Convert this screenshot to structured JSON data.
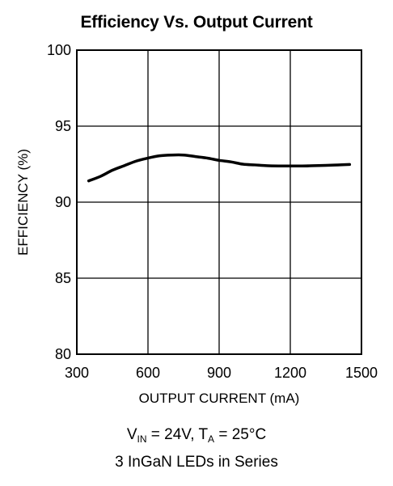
{
  "chart_data": {
    "type": "line",
    "title": "Efficiency Vs. Output Current",
    "xlabel": "OUTPUT CURRENT (mA)",
    "ylabel": "EFFICIENCY (%)",
    "xlim": [
      300,
      1500
    ],
    "ylim": [
      80,
      100
    ],
    "x_ticks": [
      300,
      600,
      900,
      1200,
      1500
    ],
    "y_ticks": [
      80,
      85,
      90,
      95,
      100
    ],
    "grid": true,
    "series": [
      {
        "x": [
          350,
          400,
          450,
          500,
          550,
          600,
          650,
          700,
          750,
          800,
          850,
          900,
          950,
          1000,
          1050,
          1100,
          1150,
          1200,
          1250,
          1300,
          1350,
          1400,
          1450
        ],
        "y": [
          91.4,
          91.7,
          92.1,
          92.4,
          92.7,
          92.9,
          93.05,
          93.1,
          93.1,
          93.0,
          92.9,
          92.75,
          92.65,
          92.5,
          92.45,
          92.4,
          92.38,
          92.38,
          92.38,
          92.4,
          92.42,
          92.45,
          92.48
        ],
        "color": "#000000"
      }
    ]
  },
  "conditions": {
    "line1": {
      "v": "V",
      "v_sub": "IN",
      "v_value": " = 24V, ",
      "t": "T",
      "t_sub": "A",
      "t_value": " = 25°C"
    },
    "line2": "3 InGaN LEDs in Series"
  }
}
